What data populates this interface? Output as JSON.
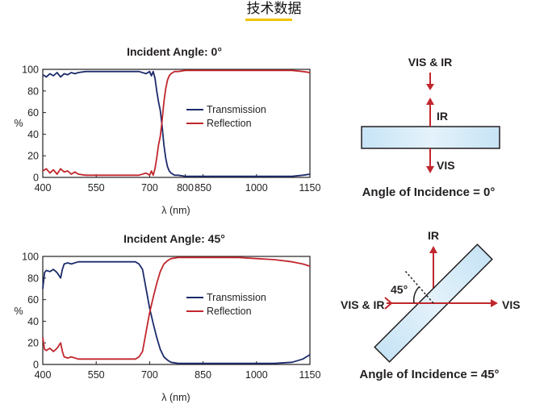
{
  "page": {
    "heading": "技术数据",
    "accent_color": "#f2c300"
  },
  "chart_data": [
    {
      "type": "line",
      "title": "Incident Angle: 0°",
      "xlabel": "λ (nm)",
      "ylabel": "%",
      "xlim": [
        400,
        1150
      ],
      "ylim": [
        0,
        100
      ],
      "xticks": [
        400,
        550,
        700,
        800,
        850,
        1000,
        1150
      ],
      "yticks": [
        0,
        20,
        40,
        60,
        80,
        100
      ],
      "legend": "center-right",
      "series": [
        {
          "name": "Transmission",
          "color": "#1c2b6b",
          "x": [
            400,
            410,
            420,
            430,
            440,
            450,
            460,
            470,
            480,
            490,
            500,
            520,
            550,
            580,
            610,
            640,
            670,
            690,
            700,
            705,
            710,
            715,
            720,
            725,
            730,
            735,
            740,
            745,
            750,
            755,
            760,
            770,
            780,
            800,
            850,
            900,
            950,
            1000,
            1050,
            1100,
            1130,
            1150
          ],
          "values": [
            95,
            93,
            96,
            94,
            97,
            93,
            96,
            95,
            97,
            96,
            97,
            98,
            98,
            98,
            98,
            98,
            98,
            96,
            98,
            94,
            98,
            92,
            80,
            70,
            62,
            48,
            30,
            18,
            10,
            6,
            4,
            2,
            2,
            1,
            1,
            1,
            1,
            1,
            1,
            1,
            2,
            3
          ]
        },
        {
          "name": "Reflection",
          "color": "#c1272d",
          "x": [
            400,
            410,
            420,
            430,
            440,
            450,
            460,
            470,
            480,
            490,
            500,
            520,
            550,
            580,
            610,
            640,
            670,
            690,
            700,
            705,
            710,
            715,
            720,
            725,
            730,
            735,
            740,
            745,
            750,
            755,
            760,
            770,
            780,
            800,
            850,
            900,
            950,
            1000,
            1050,
            1100,
            1130,
            1150
          ],
          "values": [
            6,
            8,
            4,
            7,
            3,
            8,
            5,
            6,
            3,
            5,
            3,
            2,
            2,
            2,
            2,
            2,
            2,
            4,
            2,
            6,
            2,
            8,
            18,
            30,
            38,
            52,
            70,
            82,
            90,
            94,
            96,
            98,
            98,
            99,
            99,
            99,
            99,
            99,
            99,
            99,
            98,
            97
          ]
        }
      ]
    },
    {
      "type": "line",
      "title": "Incident Angle: 45°",
      "xlabel": "λ (nm)",
      "ylabel": "%",
      "xlim": [
        400,
        1150
      ],
      "ylim": [
        0,
        100
      ],
      "xticks": [
        400,
        550,
        700,
        850,
        1000,
        1150
      ],
      "yticks": [
        0,
        20,
        40,
        60,
        80,
        100
      ],
      "legend": "center-right",
      "series": [
        {
          "name": "Transmission",
          "color": "#1c2b6b",
          "x": [
            400,
            405,
            410,
            420,
            430,
            440,
            450,
            455,
            460,
            470,
            480,
            500,
            530,
            560,
            600,
            640,
            660,
            670,
            680,
            690,
            700,
            710,
            720,
            730,
            740,
            750,
            760,
            780,
            800,
            850,
            900,
            950,
            1000,
            1050,
            1100,
            1130,
            1150
          ],
          "values": [
            70,
            85,
            87,
            86,
            88,
            85,
            80,
            88,
            93,
            94,
            93,
            95,
            95,
            95,
            95,
            95,
            95,
            93,
            88,
            70,
            52,
            38,
            25,
            14,
            7,
            4,
            2,
            1,
            1,
            1,
            1,
            1,
            1,
            1,
            2,
            5,
            9
          ]
        },
        {
          "name": "Reflection",
          "color": "#c1272d",
          "x": [
            400,
            405,
            410,
            420,
            430,
            440,
            450,
            455,
            460,
            470,
            480,
            500,
            530,
            560,
            600,
            640,
            660,
            670,
            680,
            690,
            700,
            710,
            720,
            730,
            740,
            750,
            760,
            780,
            800,
            850,
            900,
            950,
            1000,
            1050,
            1100,
            1130,
            1150
          ],
          "values": [
            25,
            14,
            13,
            15,
            12,
            15,
            20,
            12,
            7,
            6,
            7,
            5,
            5,
            5,
            5,
            5,
            5,
            7,
            12,
            30,
            48,
            62,
            75,
            86,
            93,
            96,
            98,
            99,
            99,
            99,
            99,
            99,
            98,
            97,
            95,
            93,
            91
          ]
        }
      ]
    }
  ],
  "diagrams": [
    {
      "top_label": "VIS & IR",
      "reflect_label": "IR",
      "transmit_label": "VIS",
      "caption": "Angle of Incidence = 0°"
    },
    {
      "left_label": "VIS & IR",
      "reflect_label": "IR",
      "transmit_label": "VIS",
      "angle_label": "45°",
      "caption": "Angle of Incidence = 45°"
    }
  ]
}
